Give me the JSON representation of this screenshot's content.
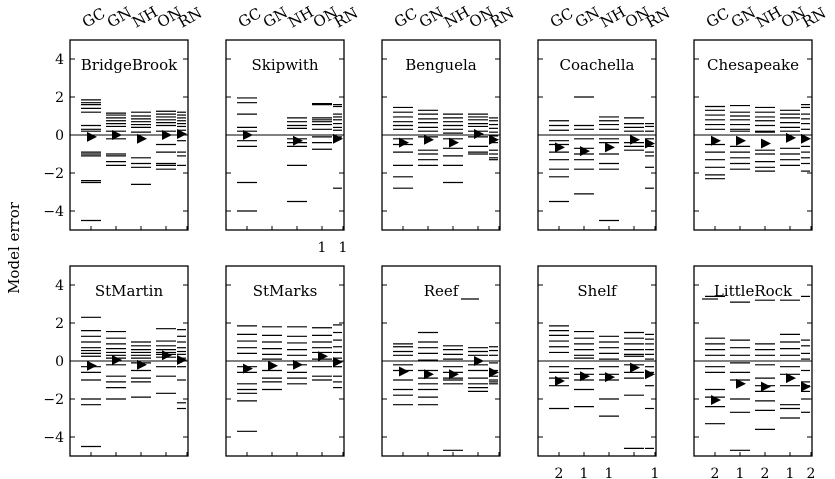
{
  "chart_data": {
    "type": "scatter",
    "description_free": true,
    "ylabel": "Model error",
    "ylim": [
      -5,
      5
    ],
    "yticks": [
      -4,
      -2,
      0,
      2,
      4
    ],
    "categories": [
      "GC",
      "GN",
      "NH",
      "ON",
      "RN"
    ],
    "grid": false,
    "panels": [
      {
        "name": "BridgeBrook",
        "means": [
          -0.1,
          0.0,
          -0.2,
          0.0,
          0.05
        ],
        "errors": [
          [
            1.85,
            1.7,
            1.6,
            1.4,
            1.2,
            0.5,
            0.3,
            0.2,
            -0.9,
            -1.0,
            -1.1,
            -2.4,
            -2.5,
            -4.5
          ],
          [
            1.15,
            1.05,
            0.9,
            0.75,
            0.6,
            0.45,
            0.2,
            -0.2,
            -1.0,
            -1.1,
            -1.4,
            -1.6
          ],
          [
            1.2,
            1.0,
            0.85,
            0.7,
            0.55,
            0.4,
            0.15,
            -1.2,
            -1.5,
            -1.7,
            -2.6
          ],
          [
            1.25,
            1.1,
            0.95,
            0.8,
            0.65,
            0.5,
            0.2,
            -0.5,
            -0.9,
            -1.5,
            -1.6,
            -1.8
          ],
          [
            1.2,
            1.05,
            0.9,
            0.75,
            0.6,
            0.45,
            0.25,
            -0.3,
            -0.9,
            -1.1,
            -1.6
          ]
        ],
        "counts": [
          "",
          "",
          "",
          "",
          ""
        ]
      },
      {
        "name": "Skipwith",
        "means": [
          0.0,
          null,
          -0.3,
          null,
          -0.2
        ],
        "errors": [
          [
            1.95,
            1.7,
            1.1,
            0.4,
            0.2,
            -0.3,
            -0.6,
            -2.5,
            -4.0
          ],
          [],
          [
            0.9,
            0.7,
            0.5,
            0.35,
            -0.2,
            -0.4,
            -0.6,
            -1.6,
            -3.5
          ],
          [
            1.65,
            1.6,
            0.9,
            0.8,
            0.7,
            0.55,
            0.3,
            -0.1,
            -0.4,
            -0.75
          ],
          [
            1.6,
            1.5,
            1.1,
            0.95,
            0.8,
            0.6,
            0.4,
            0.25,
            -0.1,
            -2.8
          ]
        ],
        "counts": [
          "",
          "",
          "",
          "1",
          "1"
        ]
      },
      {
        "name": "Benguela",
        "means": [
          -0.4,
          -0.25,
          -0.4,
          0.05,
          -0.25
        ],
        "errors": [
          [
            1.45,
            1.2,
            0.95,
            0.7,
            0.5,
            0.3,
            -0.2,
            -0.5,
            -0.9,
            -1.6,
            -2.2,
            -2.8
          ],
          [
            1.3,
            1.1,
            0.85,
            0.65,
            0.4,
            0.2,
            -0.1,
            -0.8,
            -1.0,
            -1.3,
            -1.6
          ],
          [
            1.1,
            0.9,
            0.7,
            0.5,
            0.3,
            0.1,
            -0.2,
            -0.7,
            -1.1,
            -1.6,
            -2.5
          ],
          [
            1.1,
            0.95,
            0.8,
            0.6,
            0.45,
            0.2,
            -0.1,
            -0.6,
            -0.9,
            -1.0
          ],
          [
            0.9,
            0.75,
            0.55,
            0.35,
            0.15,
            -0.05,
            -0.4,
            -0.8,
            -1.0,
            -1.2,
            -1.3
          ]
        ],
        "counts": [
          "",
          "",
          "",
          "",
          ""
        ]
      },
      {
        "name": "Coachella",
        "means": [
          -0.65,
          -0.85,
          -0.65,
          -0.25,
          -0.45
        ],
        "errors": [
          [
            0.75,
            0.5,
            0.25,
            -0.3,
            -0.5,
            -0.9,
            -1.3,
            -1.8,
            -2.2,
            -3.5
          ],
          [
            2.0,
            0.5,
            0.3,
            -0.2,
            -0.7,
            -1.0,
            -1.3,
            -1.8,
            -3.1
          ],
          [
            0.95,
            0.75,
            0.55,
            0.3,
            -0.2,
            -0.4,
            -1.0,
            -1.5,
            -1.8,
            -4.5
          ],
          [
            0.9,
            0.6,
            0.4,
            0.2,
            -0.4,
            -0.6,
            -0.8
          ],
          [
            0.6,
            0.45,
            0.2,
            -0.2,
            -0.6,
            -0.9,
            -1.1,
            -1.7,
            -2.8
          ]
        ],
        "counts": [
          "",
          "",
          "",
          "",
          ""
        ]
      },
      {
        "name": "Chesapeake",
        "means": [
          -0.3,
          -0.3,
          -0.45,
          -0.15,
          -0.2
        ],
        "errors": [
          [
            1.5,
            1.3,
            1.05,
            0.8,
            0.55,
            0.3,
            -0.5,
            -0.9,
            -1.3,
            -1.7,
            -2.1,
            -2.3
          ],
          [
            1.55,
            1.2,
            1.0,
            0.8,
            0.55,
            0.3,
            0.2,
            -0.6,
            -0.9,
            -1.2,
            -1.5,
            -1.8
          ],
          [
            1.45,
            1.2,
            0.95,
            0.75,
            0.5,
            0.2,
            0.15,
            -0.8,
            -1.0,
            -1.4,
            -1.7,
            -1.9
          ],
          [
            1.3,
            1.1,
            0.9,
            0.65,
            0.4,
            0.2,
            -0.7,
            -1.0,
            -1.3,
            -1.6
          ],
          [
            1.6,
            1.45,
            1.1,
            0.85,
            0.6,
            0.3,
            -0.6,
            -0.9,
            -1.2,
            -1.5,
            -1.9
          ]
        ],
        "counts": [
          "",
          "",
          "",
          "",
          ""
        ]
      },
      {
        "name": "StMartin",
        "means": [
          -0.25,
          0.05,
          -0.2,
          0.3,
          0.05
        ],
        "errors": [
          [
            2.3,
            1.6,
            1.3,
            1.0,
            0.7,
            0.55,
            0.4,
            0.25,
            -0.3,
            -0.6,
            -1.0,
            -2.0,
            -2.3,
            -4.5
          ],
          [
            1.55,
            1.2,
            0.9,
            0.65,
            0.45,
            0.3,
            0.15,
            -0.2,
            -0.8,
            -1.1,
            -1.4,
            -2.0
          ],
          [
            1.0,
            0.8,
            0.6,
            0.45,
            0.3,
            0.15,
            -0.1,
            -0.5,
            -0.9,
            -1.1,
            -1.9
          ],
          [
            1.7,
            1.05,
            0.8,
            0.6,
            0.45,
            0.35,
            0.2,
            -0.3,
            -0.8,
            -1.7
          ],
          [
            1.65,
            1.3,
            1.0,
            0.7,
            0.5,
            0.35,
            0.15,
            -0.3,
            -1.0,
            -2.2,
            -2.5
          ]
        ],
        "counts": [
          "",
          "",
          "",
          "",
          ""
        ]
      },
      {
        "name": "StMarks",
        "means": [
          -0.4,
          -0.25,
          -0.2,
          0.25,
          -0.05
        ],
        "errors": [
          [
            1.85,
            1.4,
            1.05,
            0.7,
            0.4,
            -0.3,
            -0.6,
            -1.2,
            -1.5,
            -1.7,
            -2.1,
            -3.7
          ],
          [
            1.8,
            1.35,
            1.0,
            0.65,
            0.35,
            0.1,
            -0.5,
            -0.9,
            -1.1,
            -1.5
          ],
          [
            1.8,
            1.3,
            0.95,
            0.6,
            0.3,
            -0.2,
            -0.6,
            -0.9,
            -1.2
          ],
          [
            1.75,
            1.35,
            1.0,
            0.7,
            0.45,
            0.1,
            -0.3,
            -0.8,
            -1.0
          ],
          [
            1.9,
            1.5,
            1.1,
            0.75,
            0.45,
            0.15,
            -0.3,
            -0.8,
            -1.1,
            -1.4
          ]
        ],
        "counts": [
          "",
          "",
          "",
          "",
          ""
        ]
      },
      {
        "name": "Reef",
        "means": [
          -0.55,
          -0.7,
          -0.7,
          0.0,
          -0.6
        ],
        "errors": [
          [
            0.9,
            0.75,
            0.5,
            0.3,
            -0.2,
            -0.5,
            -1.0,
            -1.5,
            -1.8,
            -2.3
          ],
          [
            1.5,
            1.0,
            0.7,
            0.4,
            0.05,
            -0.5,
            -0.9,
            -1.2,
            -1.5,
            -1.9,
            -2.3
          ],
          [
            0.8,
            0.6,
            0.35,
            0.1,
            -0.3,
            -0.6,
            -0.9,
            -1.0,
            -1.2,
            -4.7
          ],
          [
            0.7,
            0.5,
            0.3,
            -0.2,
            -0.5,
            -0.9,
            -1.2,
            -1.4,
            -1.6
          ],
          [
            0.75,
            0.55,
            0.3,
            -0.1,
            -0.5,
            -0.8,
            -1.0,
            -1.1,
            -1.2
          ]
        ],
        "counts": [
          "",
          "",
          "",
          "",
          ""
        ]
      },
      {
        "name": "Shelf",
        "means": [
          -1.05,
          -0.8,
          -0.85,
          -0.35,
          -0.7
        ],
        "errors": [
          [
            1.85,
            1.6,
            1.35,
            1.05,
            0.75,
            0.45,
            -0.3,
            -0.6,
            -0.9,
            -1.3,
            -2.5
          ],
          [
            1.55,
            1.2,
            0.9,
            0.6,
            0.3,
            0.15,
            -0.4,
            -0.7,
            -1.0,
            -1.5,
            -2.4
          ],
          [
            1.3,
            1.0,
            0.7,
            0.4,
            0.1,
            -0.3,
            -0.7,
            -1.0,
            -2.0,
            -2.9
          ],
          [
            1.5,
            1.2,
            0.9,
            0.6,
            0.35,
            0.25,
            -0.2,
            -0.6,
            -0.9,
            -1.8,
            -4.6
          ],
          [
            1.4,
            1.15,
            0.9,
            0.6,
            0.35,
            0.1,
            -0.3,
            -0.6,
            -1.3,
            -2.5,
            -4.6
          ]
        ],
        "counts": [
          "2",
          "1",
          "1",
          "",
          "1"
        ]
      },
      {
        "name": "LittleRock",
        "means": [
          -2.05,
          -1.2,
          -1.35,
          -0.9,
          -1.35
        ],
        "errors": [
          [
            3.4,
            1.2,
            0.9,
            0.6,
            0.3,
            -0.3,
            -0.6,
            -1.5,
            -1.9,
            -2.4,
            -3.3
          ],
          [
            3.1,
            1.1,
            0.7,
            0.3,
            -0.1,
            -0.6,
            -1.0,
            -2.0,
            -2.7,
            -4.7
          ],
          [
            3.2,
            0.9,
            0.6,
            0.3,
            -0.2,
            -0.9,
            -1.3,
            -1.6,
            -2.1,
            -2.6,
            -3.6
          ],
          [
            3.2,
            1.4,
            1.0,
            0.65,
            0.3,
            -0.3,
            -0.7,
            -1.3,
            -2.3,
            -2.5,
            -3.0
          ],
          [
            3.4,
            1.1,
            0.8,
            0.4,
            0.1,
            -0.5,
            -1.1,
            -1.3,
            -1.6,
            -2.0,
            -2.7
          ]
        ],
        "counts": [
          "2",
          "1",
          "2",
          "1",
          "2"
        ]
      }
    ]
  },
  "panel_annotation_marks": {
    "Reef": "short-bar-after-name",
    "LittleRock": "short-bar-before-name"
  }
}
